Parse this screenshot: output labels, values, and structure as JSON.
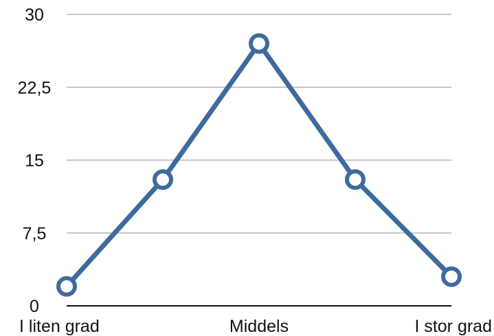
{
  "chart_data": {
    "type": "line",
    "categories": [
      "I liten grad",
      "",
      "Middels",
      "",
      "I stor grad"
    ],
    "series": [
      {
        "values": [
          2,
          13,
          27,
          13,
          3
        ],
        "color": "#3d6b9e"
      }
    ],
    "ylim": [
      0,
      30
    ],
    "yticks": [
      0,
      7.5,
      15,
      22.5,
      30
    ],
    "ytick_labels": [
      "0",
      "7,5",
      "15",
      "22,5",
      "30"
    ],
    "title": "",
    "xlabel": "",
    "ylabel": "",
    "grid": true,
    "legend": "none",
    "marker": "hollow-circle"
  }
}
